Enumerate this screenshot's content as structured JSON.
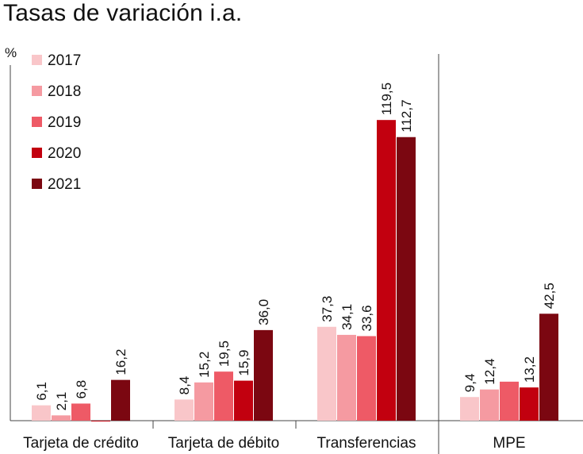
{
  "chart_data": {
    "type": "bar",
    "title": "Tasas de variación i.a.",
    "ylabel": "%",
    "xlabel": "",
    "ylim": [
      0,
      130
    ],
    "grid": false,
    "legend_position": "top-left",
    "categories": [
      "Tarjeta de crédito",
      "Tarjeta de débito",
      "Transferencias",
      "MPE"
    ],
    "series": [
      {
        "name": "2017",
        "color": "#f9c6c9",
        "values": [
          6.1,
          8.4,
          37.3,
          9.4
        ],
        "labels": [
          "6,1",
          "8,4",
          "37,3",
          "9,4"
        ]
      },
      {
        "name": "2018",
        "color": "#f59aa1",
        "values": [
          2.1,
          15.2,
          34.1,
          12.4
        ],
        "labels": [
          "2,1",
          "15,2",
          "34,1",
          "12,4"
        ]
      },
      {
        "name": "2019",
        "color": "#ee5a66",
        "values": [
          6.8,
          19.5,
          33.6,
          15.5
        ],
        "labels": [
          "6,8",
          "19,5",
          "33,6",
          null
        ]
      },
      {
        "name": "2020",
        "color": "#c2000f",
        "values": [
          -0.3,
          15.9,
          119.5,
          13.2
        ],
        "labels": [
          null,
          "15,9",
          "119,5",
          "13,2"
        ]
      },
      {
        "name": "2021",
        "color": "#7b0711",
        "values": [
          16.2,
          36.0,
          112.7,
          42.5
        ],
        "labels": [
          "16,2",
          "36,0",
          "112,7",
          "42,5"
        ]
      }
    ]
  }
}
